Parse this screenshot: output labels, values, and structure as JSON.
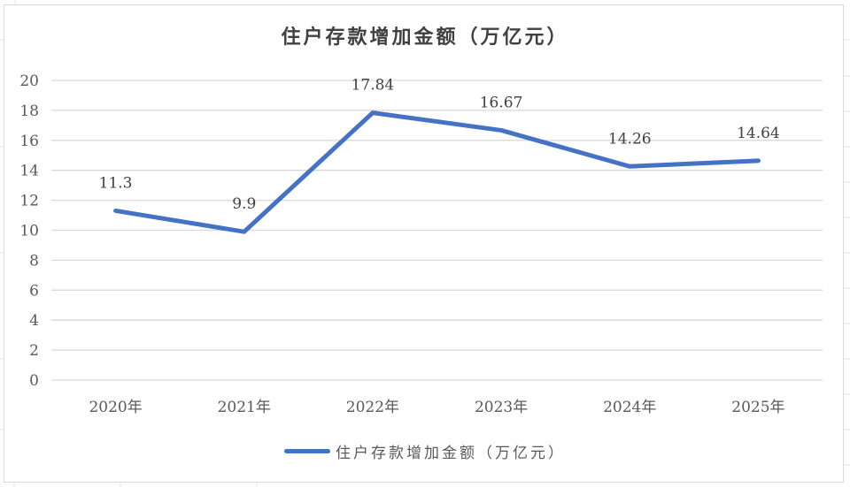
{
  "chart_data": {
    "type": "line",
    "title": "住户存款增加金额（万亿元）",
    "categories": [
      "2020年",
      "2021年",
      "2022年",
      "2023年",
      "2024年",
      "2025年"
    ],
    "series": [
      {
        "name": "住户存款增加金额（万亿元）",
        "values": [
          11.3,
          9.9,
          17.84,
          16.67,
          14.26,
          14.64
        ],
        "color": "#4472c4"
      }
    ],
    "data_labels": [
      "11.3",
      "9.9",
      "17.84",
      "16.67",
      "14.26",
      "14.64"
    ],
    "xlabel": "",
    "ylabel": "",
    "ylim": [
      0,
      20
    ],
    "yticks": [
      0,
      2,
      4,
      6,
      8,
      10,
      12,
      14,
      16,
      18,
      20
    ],
    "grid": true,
    "legend_position": "bottom"
  },
  "title": "住户存款增加金额（万亿元）",
  "legend": {
    "label": "住户存款增加金额（万亿元）",
    "color": "#4472c4"
  }
}
